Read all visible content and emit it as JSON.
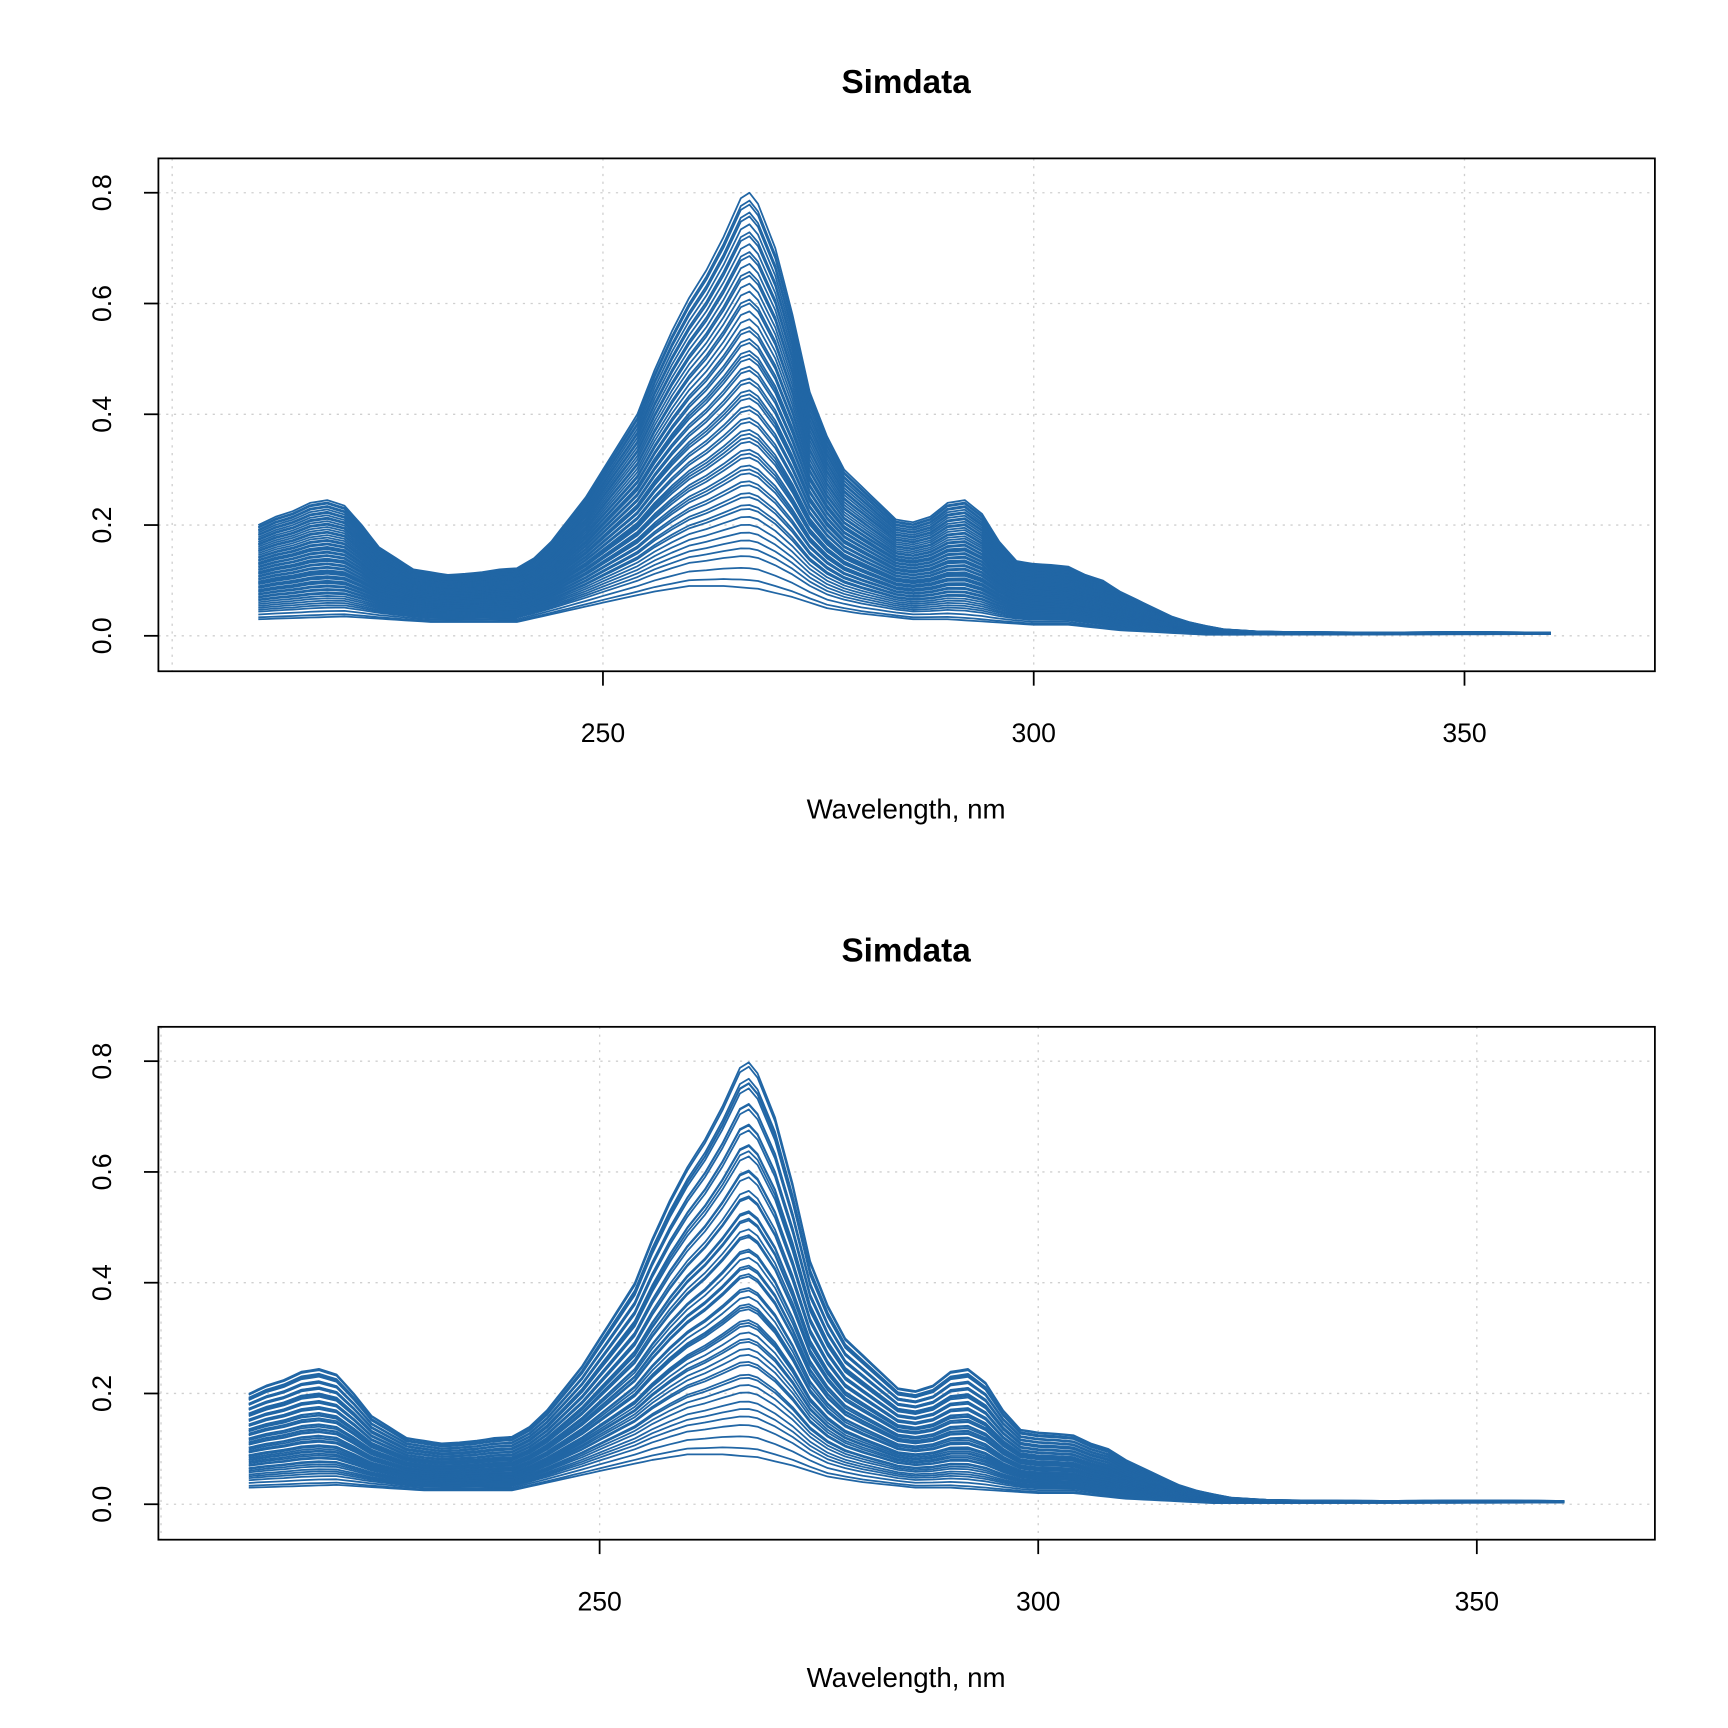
{
  "chart_data": [
    {
      "type": "line",
      "title": "Simdata",
      "xlabel": "Wavelength, nm",
      "ylabel": "",
      "xlim": [
        198.4,
        372.1
      ],
      "ylim": [
        -0.064,
        0.862
      ],
      "xticks": [
        "250",
        "300",
        "350"
      ],
      "yticks": [
        "0.0",
        "0.2",
        "0.4",
        "0.6",
        "0.8"
      ],
      "grid": true,
      "color": "#2166a5",
      "upper_profile": {
        "x": [
          210,
          212,
          214,
          216,
          218,
          220,
          222,
          224,
          226,
          228,
          230,
          232,
          234,
          236,
          238,
          240,
          242,
          244,
          246,
          248,
          250,
          252,
          254,
          256,
          258,
          260,
          262,
          264,
          266,
          267,
          268,
          270,
          272,
          274,
          276,
          278,
          280,
          282,
          284,
          286,
          288,
          290,
          292,
          294,
          296,
          298,
          300,
          302,
          304,
          306,
          308,
          310,
          312,
          314,
          316,
          318,
          320,
          322,
          324,
          326,
          330,
          340,
          350,
          360
        ],
        "y": [
          0.2,
          0.215,
          0.225,
          0.24,
          0.245,
          0.235,
          0.2,
          0.16,
          0.14,
          0.12,
          0.115,
          0.11,
          0.112,
          0.115,
          0.12,
          0.122,
          0.14,
          0.17,
          0.21,
          0.25,
          0.3,
          0.35,
          0.4,
          0.48,
          0.55,
          0.61,
          0.66,
          0.72,
          0.79,
          0.8,
          0.78,
          0.7,
          0.58,
          0.44,
          0.36,
          0.3,
          0.27,
          0.24,
          0.21,
          0.205,
          0.215,
          0.24,
          0.245,
          0.22,
          0.17,
          0.135,
          0.13,
          0.128,
          0.125,
          0.11,
          0.1,
          0.08,
          0.065,
          0.05,
          0.035,
          0.025,
          0.018,
          0.012,
          0.01,
          0.008,
          0.007,
          0.006,
          0.007,
          0.006
        ]
      },
      "lower_profile": {
        "x": [
          210,
          220,
          230,
          240,
          250,
          256,
          260,
          264,
          268,
          272,
          276,
          280,
          286,
          290,
          300,
          304,
          310,
          320,
          360
        ],
        "y": [
          0.03,
          0.035,
          0.025,
          0.025,
          0.06,
          0.08,
          0.09,
          0.09,
          0.085,
          0.07,
          0.05,
          0.04,
          0.03,
          0.03,
          0.02,
          0.02,
          0.01,
          0.002,
          0.003
        ]
      },
      "series_mix": [
        0,
        0.02,
        0.05,
        0.08,
        0.1,
        0.12,
        0.14,
        0.16,
        0.18,
        0.2,
        0.21,
        0.23,
        0.24,
        0.26,
        0.27,
        0.29,
        0.3,
        0.31,
        0.33,
        0.34,
        0.35,
        0.37,
        0.38,
        0.39,
        0.4,
        0.42,
        0.43,
        0.45,
        0.46,
        0.48,
        0.49,
        0.5,
        0.52,
        0.53,
        0.55,
        0.56,
        0.58,
        0.59,
        0.6,
        0.62,
        0.63,
        0.65,
        0.66,
        0.68,
        0.7,
        0.72,
        0.73,
        0.75,
        0.77,
        0.79,
        0.8,
        0.82,
        0.84,
        0.85,
        0.87,
        0.89,
        0.9,
        0.92,
        0.94,
        0.95,
        0.97,
        0.98,
        1
      ]
    },
    {
      "type": "line",
      "title": "Simdata",
      "xlabel": "Wavelength, nm",
      "ylabel": "",
      "xlim": [
        199.7,
        370.3
      ],
      "ylim": [
        -0.064,
        0.862
      ],
      "xticks": [
        "250",
        "300",
        "350"
      ],
      "yticks": [
        "0.0",
        "0.2",
        "0.4",
        "0.6",
        "0.8"
      ],
      "grid": true,
      "color": "#2166a5"
    }
  ]
}
